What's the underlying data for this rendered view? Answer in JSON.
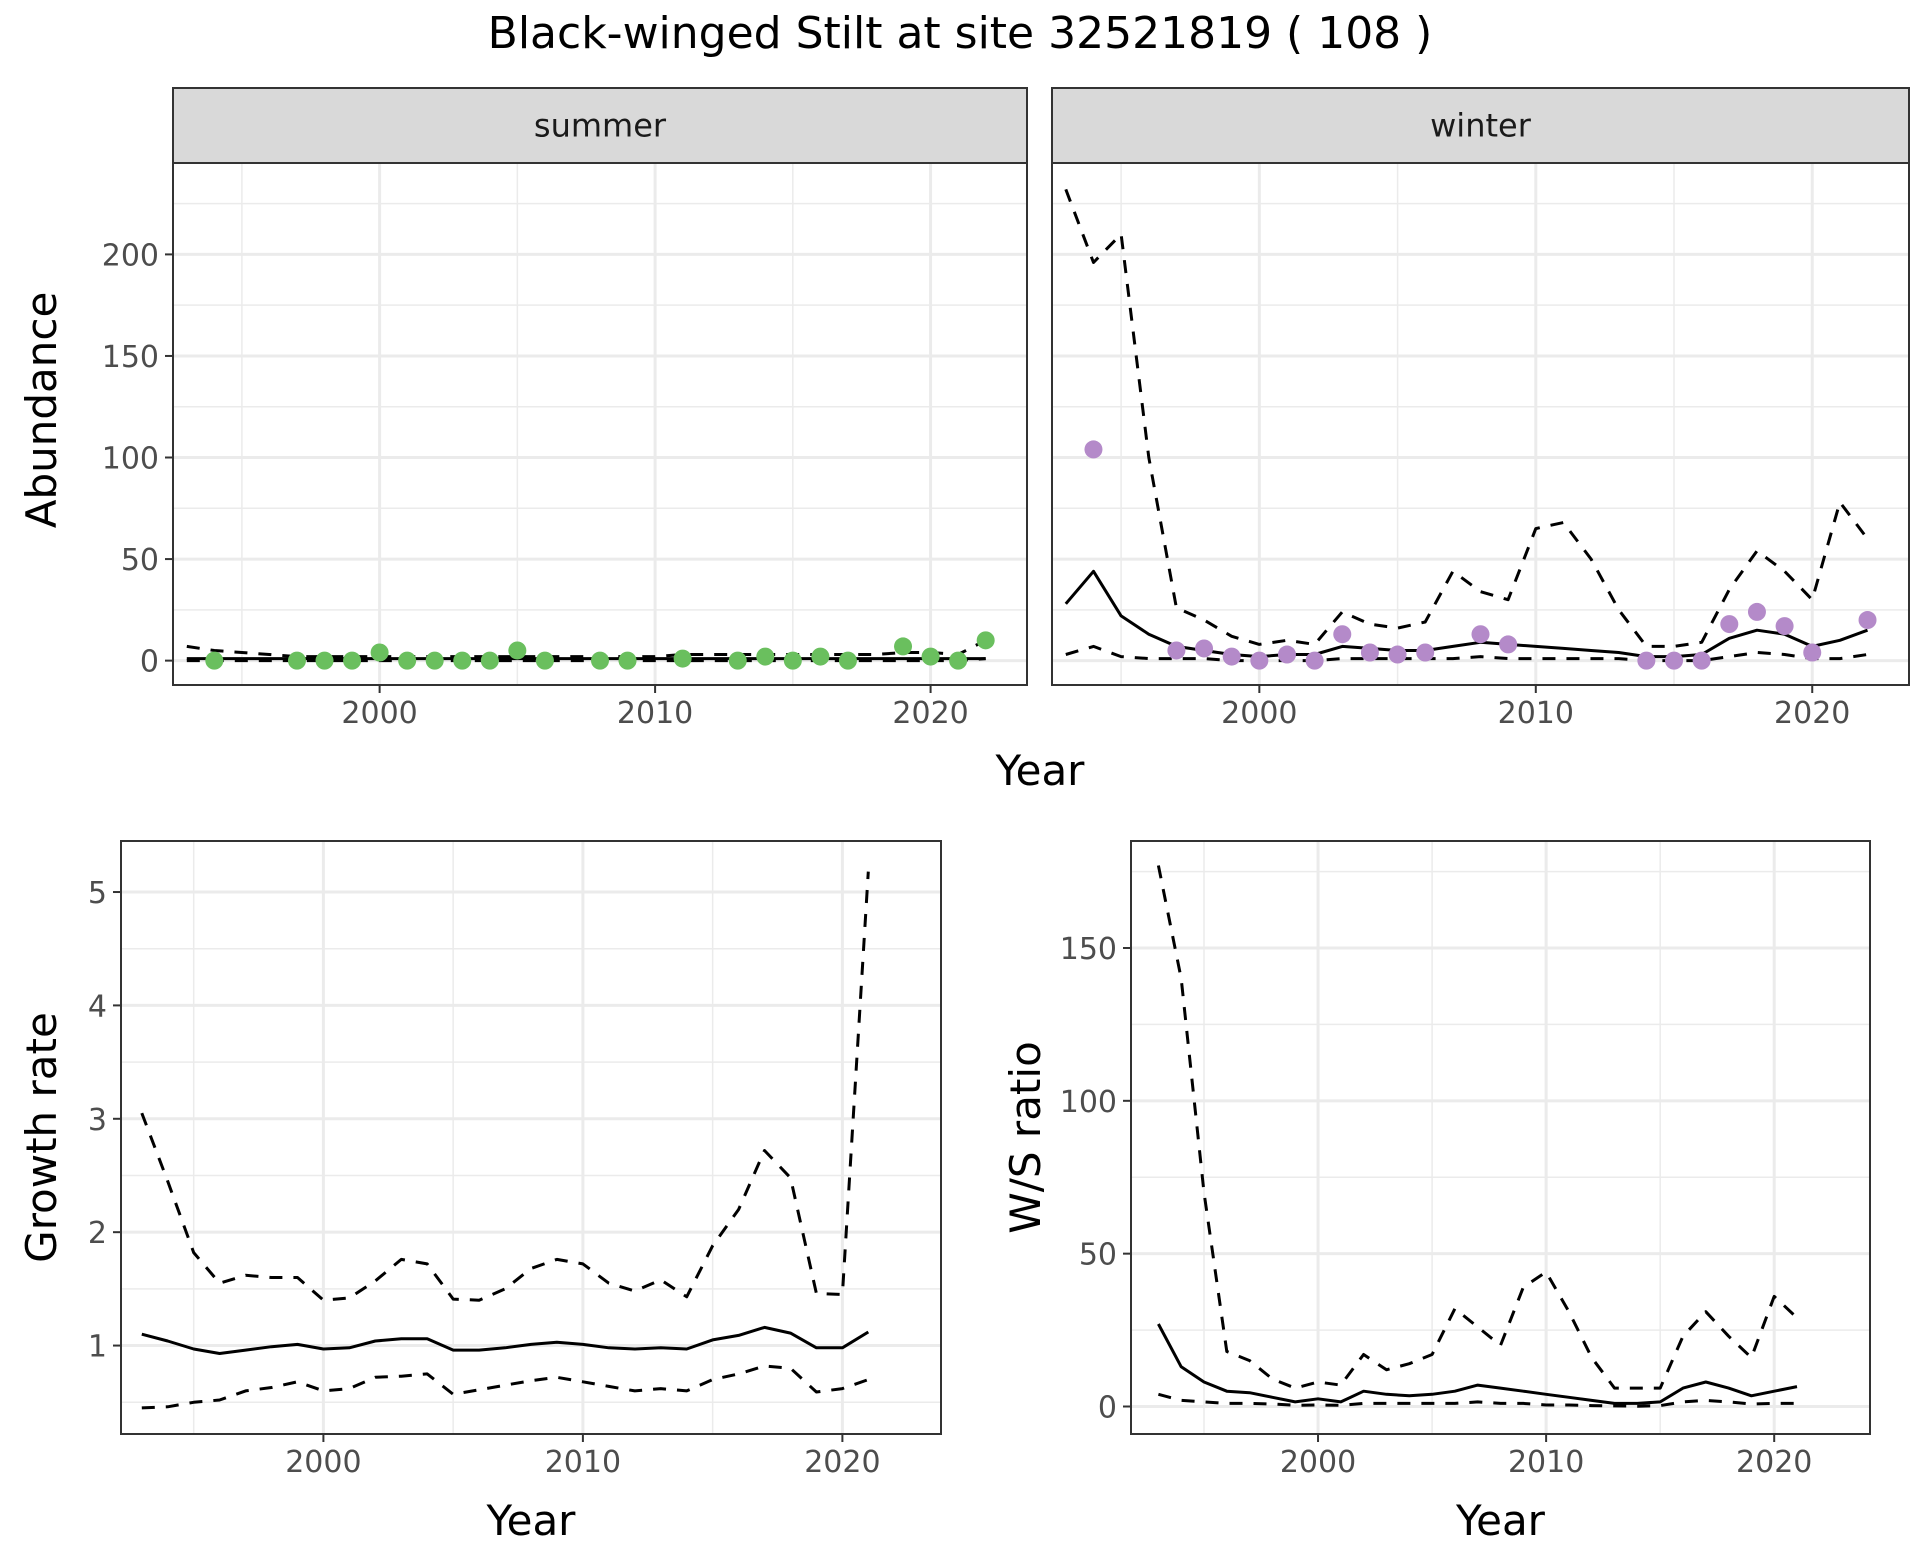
{
  "title": "Black-winged Stilt at site 32521819 ( 108 )",
  "top_row": {
    "xlabel": "Year",
    "ylabel": "Abundance"
  },
  "colors": {
    "summer_points": "#6abf5e",
    "winter_points": "#b48ac9",
    "line": "#000000",
    "grid": "#ebebeb",
    "strip_bg": "#d9d9d9",
    "panel_border": "#333333"
  },
  "chart_data": [
    {
      "id": "abundance_summer",
      "type": "line",
      "facet": "summer",
      "xlabel": "",
      "ylabel": "Abundance",
      "xlim": [
        1992.5,
        2023.5
      ],
      "ylim": [
        -12,
        245
      ],
      "x_ticks": [
        2000,
        2010,
        2020
      ],
      "y_ticks": [
        0,
        50,
        100,
        150,
        200
      ],
      "x_tick_labels": [
        "2000",
        "2010",
        "2020"
      ],
      "y_tick_labels": [
        "0",
        "50",
        "100",
        "150",
        "200"
      ],
      "lines": [
        {
          "style": "solid",
          "x": [
            1993,
            1994,
            1995,
            1996,
            1997,
            1998,
            1999,
            2000,
            2001,
            2002,
            2003,
            2004,
            2005,
            2006,
            2007,
            2008,
            2009,
            2010,
            2011,
            2012,
            2013,
            2014,
            2015,
            2016,
            2017,
            2018,
            2019,
            2020,
            2021,
            2022
          ],
          "y": [
            1,
            1,
            1,
            1,
            1,
            1,
            1,
            1,
            1,
            1,
            1,
            1,
            1,
            1,
            1,
            1,
            1,
            1,
            1,
            1,
            1,
            1,
            1,
            1,
            1,
            1,
            1,
            1,
            1,
            1
          ]
        },
        {
          "style": "dashed",
          "x": [
            1993,
            1994,
            1995,
            1996,
            1997,
            1998,
            1999,
            2000,
            2001,
            2002,
            2003,
            2004,
            2005,
            2006,
            2007,
            2008,
            2009,
            2010,
            2011,
            2012,
            2013,
            2014,
            2015,
            2016,
            2017,
            2018,
            2019,
            2020,
            2021,
            2022
          ],
          "y": [
            7,
            5,
            4,
            3,
            2,
            2,
            2,
            2,
            2,
            2,
            2,
            2,
            2,
            2,
            2,
            2,
            2,
            2,
            3,
            3,
            3,
            3,
            3,
            3,
            3,
            3,
            4,
            4,
            3,
            10
          ]
        },
        {
          "style": "dashed",
          "x": [
            1993,
            1994,
            1995,
            1996,
            1997,
            1998,
            1999,
            2000,
            2001,
            2002,
            2003,
            2004,
            2005,
            2006,
            2007,
            2008,
            2009,
            2010,
            2011,
            2012,
            2013,
            2014,
            2015,
            2016,
            2017,
            2018,
            2019,
            2020,
            2021,
            2022
          ],
          "y": [
            0,
            0,
            0,
            0,
            0,
            0,
            0,
            0,
            0,
            0,
            0,
            0,
            0,
            0,
            0,
            0,
            0,
            0,
            0,
            0,
            0,
            0,
            0,
            0,
            0,
            0,
            0,
            0,
            0,
            1
          ]
        }
      ],
      "points": {
        "x": [
          1994,
          1997,
          1998,
          1999,
          2000,
          2001,
          2002,
          2003,
          2004,
          2005,
          2006,
          2008,
          2009,
          2011,
          2013,
          2014,
          2015,
          2016,
          2017,
          2019,
          2020,
          2021,
          2022
        ],
        "y": [
          0,
          0,
          0,
          0,
          4,
          0,
          0,
          0,
          0,
          5,
          0,
          0,
          0,
          1,
          0,
          2,
          0,
          2,
          0,
          7,
          2,
          0,
          10
        ]
      }
    },
    {
      "id": "abundance_winter",
      "type": "line",
      "facet": "winter",
      "xlabel": "",
      "ylabel": "",
      "xlim": [
        1992.5,
        2023.5
      ],
      "ylim": [
        -12,
        245
      ],
      "x_ticks": [
        2000,
        2010,
        2020
      ],
      "y_ticks": [
        0,
        50,
        100,
        150,
        200
      ],
      "x_tick_labels": [
        "2000",
        "2010",
        "2020"
      ],
      "y_tick_labels": [],
      "lines": [
        {
          "style": "solid",
          "x": [
            1993,
            1994,
            1995,
            1996,
            1997,
            1998,
            1999,
            2000,
            2001,
            2002,
            2003,
            2004,
            2005,
            2006,
            2007,
            2008,
            2009,
            2010,
            2011,
            2012,
            2013,
            2014,
            2015,
            2016,
            2017,
            2018,
            2019,
            2020,
            2021,
            2022
          ],
          "y": [
            28,
            44,
            22,
            13,
            7,
            5,
            3,
            2,
            3,
            3,
            7,
            6,
            5,
            5,
            7,
            9,
            8,
            7,
            6,
            5,
            4,
            2,
            2,
            3,
            11,
            15,
            13,
            7,
            10,
            15
          ]
        },
        {
          "style": "dashed",
          "x": [
            1993,
            1994,
            1995,
            1996,
            1997,
            1998,
            1999,
            2000,
            2001,
            2002,
            2003,
            2004,
            2005,
            2006,
            2007,
            2008,
            2009,
            2010,
            2011,
            2012,
            2013,
            2014,
            2015,
            2016,
            2017,
            2018,
            2019,
            2020,
            2021,
            2022
          ],
          "y": [
            232,
            196,
            210,
            100,
            26,
            20,
            12,
            8,
            10,
            8,
            24,
            18,
            16,
            19,
            44,
            34,
            30,
            65,
            68,
            50,
            25,
            7,
            7,
            9,
            35,
            54,
            44,
            30,
            78,
            60
          ]
        },
        {
          "style": "dashed",
          "x": [
            1993,
            1994,
            1995,
            1996,
            1997,
            1998,
            1999,
            2000,
            2001,
            2002,
            2003,
            2004,
            2005,
            2006,
            2007,
            2008,
            2009,
            2010,
            2011,
            2012,
            2013,
            2014,
            2015,
            2016,
            2017,
            2018,
            2019,
            2020,
            2021,
            2022
          ],
          "y": [
            3,
            7,
            2,
            1,
            1,
            1,
            0,
            0,
            0,
            0,
            1,
            1,
            1,
            1,
            1,
            2,
            1,
            1,
            1,
            1,
            1,
            0,
            0,
            0,
            2,
            4,
            3,
            1,
            1,
            3
          ]
        }
      ],
      "points": {
        "x": [
          1994,
          1997,
          1998,
          1999,
          2000,
          2001,
          2002,
          2003,
          2004,
          2005,
          2006,
          2008,
          2009,
          2014,
          2015,
          2016,
          2017,
          2018,
          2019,
          2020,
          2022
        ],
        "y": [
          104,
          5,
          6,
          2,
          0,
          3,
          0,
          13,
          4,
          3,
          4,
          13,
          8,
          0,
          0,
          0,
          18,
          24,
          17,
          4,
          20
        ]
      }
    },
    {
      "id": "growth_rate",
      "type": "line",
      "xlabel": "Year",
      "ylabel": "Growth rate",
      "xlim": [
        1992.2,
        2023.8
      ],
      "ylim": [
        0.22,
        5.45
      ],
      "x_ticks": [
        2000,
        2010,
        2020
      ],
      "y_ticks": [
        1,
        2,
        3,
        4,
        5
      ],
      "x_tick_labels": [
        "2000",
        "2010",
        "2020"
      ],
      "y_tick_labels": [
        "1",
        "2",
        "3",
        "4",
        "5"
      ],
      "lines": [
        {
          "style": "solid",
          "x": [
            1993,
            1994,
            1995,
            1996,
            1997,
            1998,
            1999,
            2000,
            2001,
            2002,
            2003,
            2004,
            2005,
            2006,
            2007,
            2008,
            2009,
            2010,
            2011,
            2012,
            2013,
            2014,
            2015,
            2016,
            2017,
            2018,
            2019,
            2020,
            2021
          ],
          "y": [
            1.1,
            1.04,
            0.97,
            0.93,
            0.96,
            0.99,
            1.01,
            0.97,
            0.98,
            1.04,
            1.06,
            1.06,
            0.96,
            0.96,
            0.98,
            1.01,
            1.03,
            1.01,
            0.98,
            0.97,
            0.98,
            0.97,
            1.05,
            1.09,
            1.16,
            1.11,
            0.98,
            0.98,
            1.12
          ]
        },
        {
          "style": "dashed",
          "x": [
            1993,
            1994,
            1995,
            1996,
            1997,
            1998,
            1999,
            2000,
            2001,
            2002,
            2003,
            2004,
            2005,
            2006,
            2007,
            2008,
            2009,
            2010,
            2011,
            2012,
            2013,
            2014,
            2015,
            2016,
            2017,
            2018,
            2019,
            2020,
            2021
          ],
          "y": [
            3.05,
            2.45,
            1.82,
            1.55,
            1.62,
            1.6,
            1.6,
            1.4,
            1.42,
            1.57,
            1.76,
            1.72,
            1.41,
            1.4,
            1.5,
            1.68,
            1.76,
            1.72,
            1.55,
            1.48,
            1.58,
            1.43,
            1.88,
            2.2,
            2.72,
            2.48,
            1.46,
            1.45,
            5.18
          ]
        },
        {
          "style": "dashed",
          "x": [
            1993,
            1994,
            1995,
            1996,
            1997,
            1998,
            1999,
            2000,
            2001,
            2002,
            2003,
            2004,
            2005,
            2006,
            2007,
            2008,
            2009,
            2010,
            2011,
            2012,
            2013,
            2014,
            2015,
            2016,
            2017,
            2018,
            2019,
            2020,
            2021
          ],
          "y": [
            0.45,
            0.46,
            0.5,
            0.52,
            0.6,
            0.63,
            0.68,
            0.6,
            0.62,
            0.72,
            0.73,
            0.75,
            0.57,
            0.61,
            0.65,
            0.69,
            0.72,
            0.68,
            0.64,
            0.6,
            0.62,
            0.6,
            0.7,
            0.75,
            0.82,
            0.8,
            0.59,
            0.62,
            0.7
          ]
        }
      ]
    },
    {
      "id": "ws_ratio",
      "type": "line",
      "xlabel": "Year",
      "ylabel": "W/S ratio",
      "xlim": [
        1991.8,
        2024.2
      ],
      "ylim": [
        -9,
        185
      ],
      "x_ticks": [
        2000,
        2010,
        2020
      ],
      "y_ticks": [
        0,
        50,
        100,
        150
      ],
      "x_tick_labels": [
        "2000",
        "2010",
        "2020"
      ],
      "y_tick_labels": [
        "0",
        "50",
        "100",
        "150"
      ],
      "lines": [
        {
          "style": "solid",
          "x": [
            1993,
            1994,
            1995,
            1996,
            1997,
            1998,
            1999,
            2000,
            2001,
            2002,
            2003,
            2004,
            2005,
            2006,
            2007,
            2008,
            2009,
            2010,
            2011,
            2012,
            2013,
            2014,
            2015,
            2016,
            2017,
            2018,
            2019,
            2020,
            2021
          ],
          "y": [
            27,
            13,
            8,
            5,
            4.5,
            3,
            1.5,
            2.5,
            1.5,
            5,
            4,
            3.5,
            4,
            5,
            7,
            6,
            5,
            4,
            3,
            2,
            1,
            1,
            1.5,
            6,
            8,
            6,
            3.5,
            5,
            6.5
          ]
        },
        {
          "style": "dashed",
          "x": [
            1993,
            1994,
            1995,
            1996,
            1997,
            1998,
            1999,
            2000,
            2001,
            2002,
            2003,
            2004,
            2005,
            2006,
            2007,
            2008,
            2009,
            2010,
            2011,
            2012,
            2013,
            2014,
            2015,
            2016,
            2017,
            2018,
            2019,
            2020,
            2021
          ],
          "y": [
            177,
            140,
            70,
            18,
            15,
            9,
            6,
            8,
            7,
            17,
            12,
            14,
            17,
            32,
            26,
            20,
            39,
            44,
            31,
            16,
            6,
            6,
            6,
            23,
            31,
            23,
            16,
            36,
            29
          ]
        },
        {
          "style": "dashed",
          "x": [
            1993,
            1994,
            1995,
            1996,
            1997,
            1998,
            1999,
            2000,
            2001,
            2002,
            2003,
            2004,
            2005,
            2006,
            2007,
            2008,
            2009,
            2010,
            2011,
            2012,
            2013,
            2014,
            2015,
            2016,
            2017,
            2018,
            2019,
            2020,
            2021
          ],
          "y": [
            4,
            2,
            1.5,
            1,
            1,
            0.8,
            0.4,
            0.5,
            0.4,
            1,
            1,
            1,
            1,
            1,
            1.5,
            1,
            1,
            0.5,
            0.5,
            0.3,
            0.2,
            0.1,
            0.3,
            1.5,
            2,
            1.5,
            0.8,
            1,
            1
          ]
        }
      ]
    }
  ]
}
